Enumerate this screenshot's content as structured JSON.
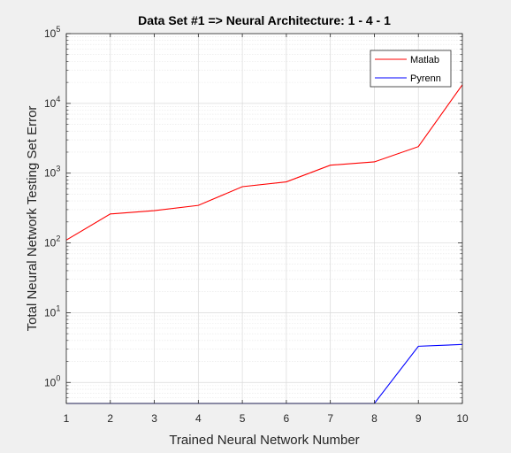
{
  "chart_data": {
    "type": "line",
    "title": "Data Set #1 => Neural Architecture: 1 - 4 - 1",
    "xlabel": "Trained Neural Network Number",
    "ylabel": "Total Neural Network Testing Set Error",
    "x": [
      1,
      2,
      3,
      4,
      5,
      6,
      7,
      8,
      9,
      10
    ],
    "xlim": [
      1,
      10
    ],
    "ylim": [
      0.5,
      100000
    ],
    "yscale": "log",
    "grid": true,
    "minor_grid": true,
    "legend": "top-right",
    "x_ticks": [
      "1",
      "2",
      "3",
      "4",
      "5",
      "6",
      "7",
      "8",
      "9",
      "10"
    ],
    "y_ticks": [
      {
        "value": 1,
        "base": "10",
        "exp": "0"
      },
      {
        "value": 10,
        "base": "10",
        "exp": "1"
      },
      {
        "value": 100,
        "base": "10",
        "exp": "2"
      },
      {
        "value": 1000,
        "base": "10",
        "exp": "3"
      },
      {
        "value": 10000,
        "base": "10",
        "exp": "4"
      },
      {
        "value": 100000,
        "base": "10",
        "exp": "5"
      }
    ],
    "series": [
      {
        "name": "Matlab",
        "color": "#ff0000",
        "values": [
          110,
          260,
          290,
          345,
          640,
          750,
          1300,
          1450,
          2400,
          18500
        ]
      },
      {
        "name": "Pyrenn",
        "color": "#0000ff",
        "values": [
          0.5,
          0.5,
          0.5,
          0.5,
          0.5,
          0.5,
          0.5,
          0.5,
          3.3,
          3.5
        ]
      }
    ]
  }
}
